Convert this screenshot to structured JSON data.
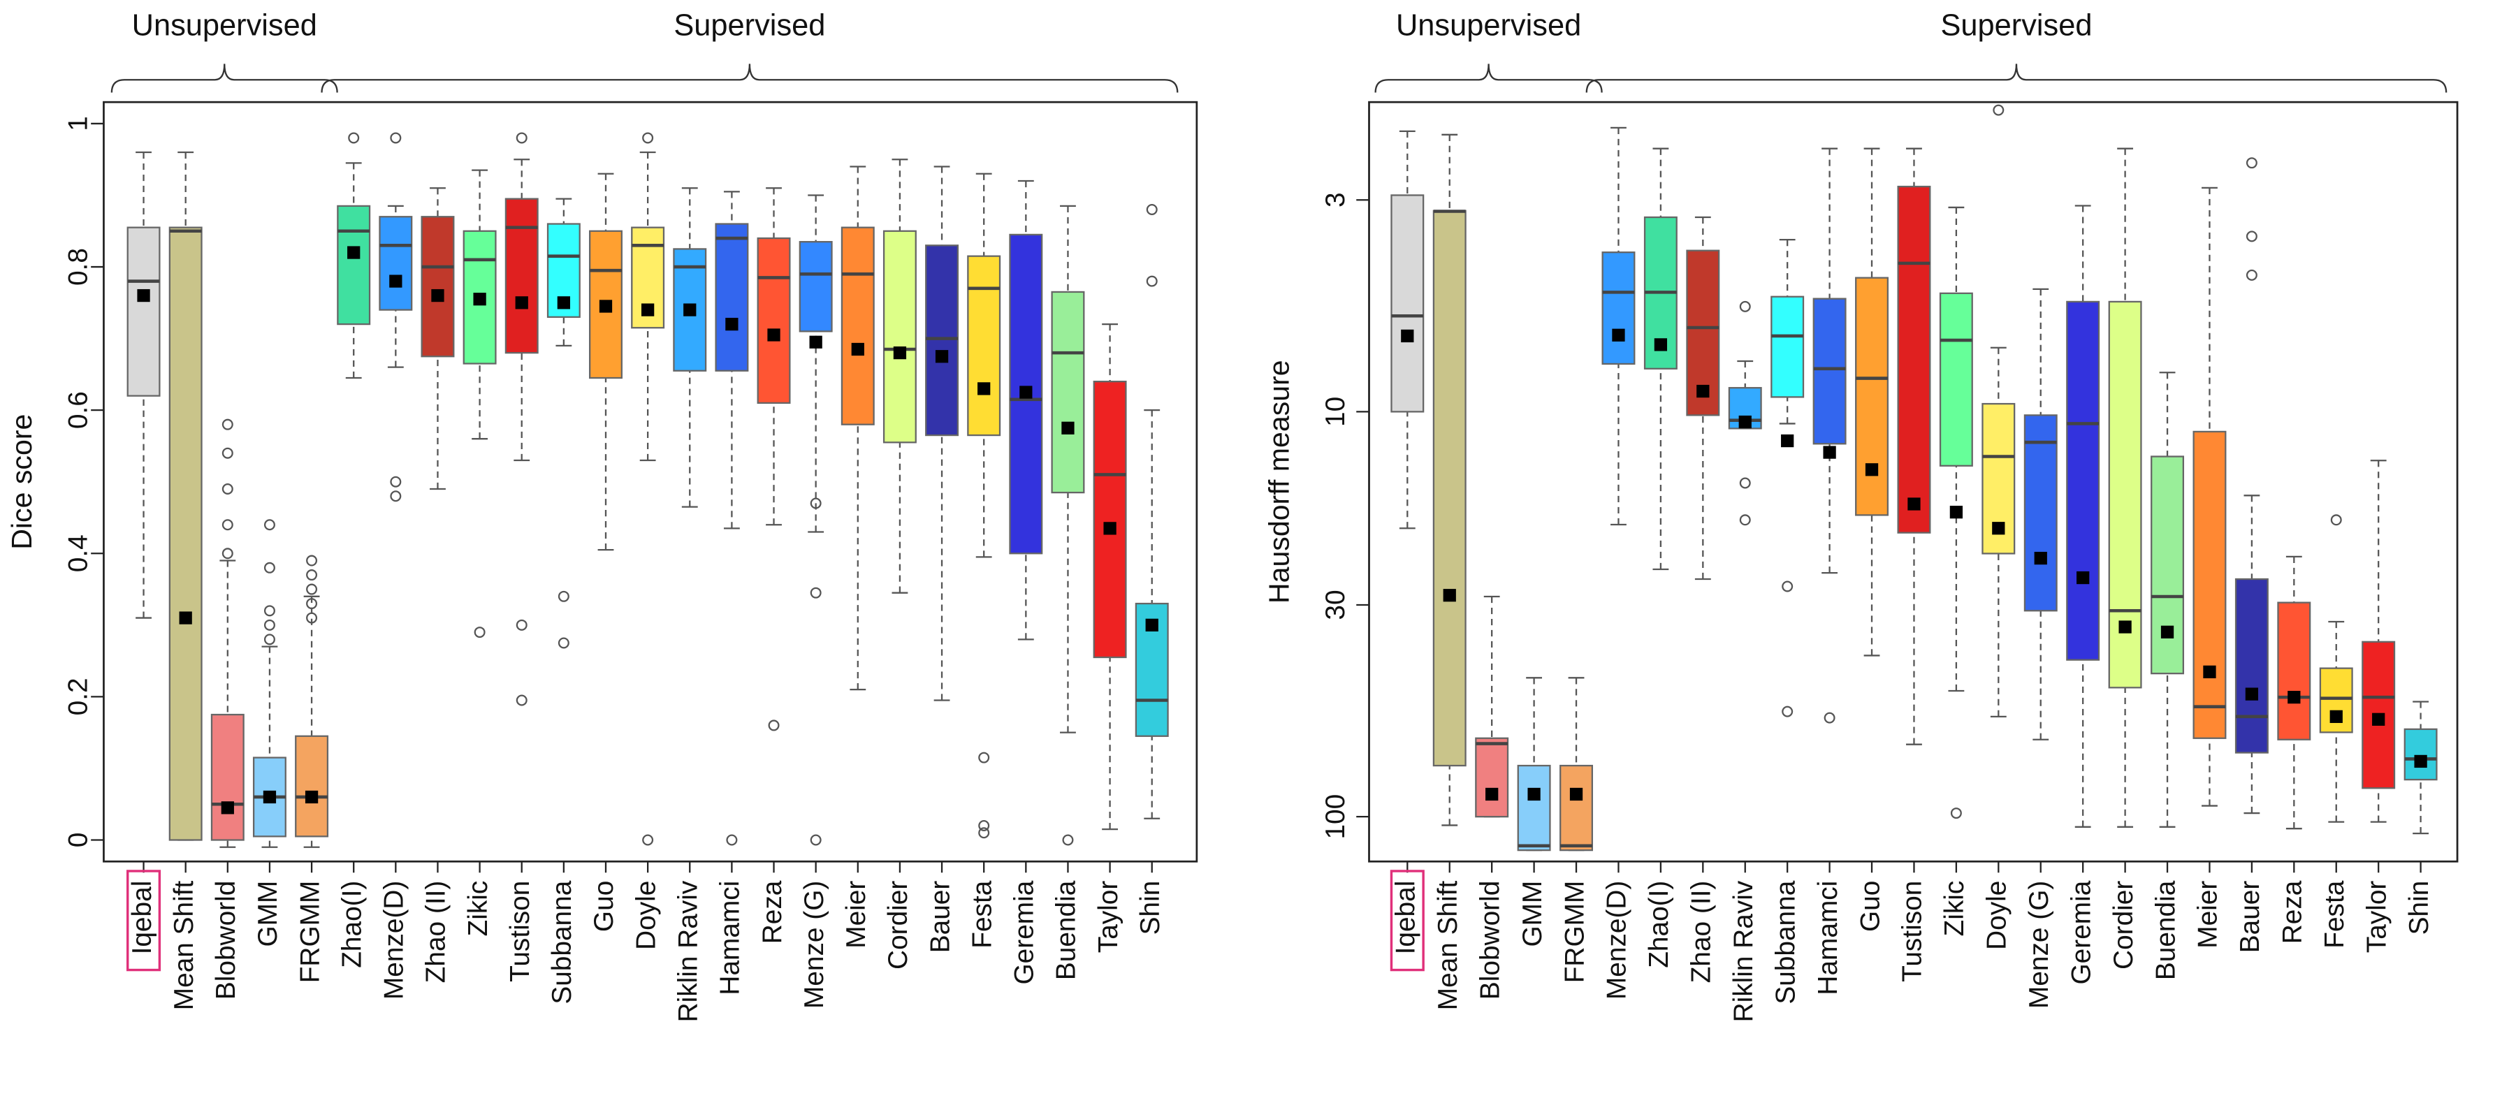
{
  "chart_data": [
    {
      "type": "box",
      "y_label": "Dice score",
      "annotations": [
        "Unsupervised",
        "Supervised"
      ],
      "categories": [
        "Iqebal",
        "Mean Shift",
        "Blobworld",
        "GMM",
        "FRGMM",
        "Zhao(I)",
        "Menze(D)",
        "Zhao (II)",
        "Zikic",
        "Tustison",
        "Subbanna",
        "Guo",
        "Doyle",
        "Riklin Raviv",
        "Hamamci",
        "Reza",
        "Menze (G)",
        "Meier",
        "Cordier",
        "Bauer",
        "Festa",
        "Geremia",
        "Buendia",
        "Taylor",
        "Shin"
      ],
      "min": [
        0.31,
        0,
        -0.01,
        -0.01,
        -0.01,
        0.645,
        0.66,
        0.49,
        0.56,
        0.53,
        0.69,
        0.405,
        0.53,
        0.465,
        0.435,
        0.44,
        0.43,
        0.21,
        0.345,
        0.195,
        0.395,
        0.28,
        0.15,
        0.015,
        0.03
      ],
      "q1": [
        0.62,
        0,
        0,
        0.005,
        0.005,
        0.72,
        0.74,
        0.675,
        0.665,
        0.68,
        0.73,
        0.645,
        0.715,
        0.655,
        0.655,
        0.61,
        0.71,
        0.58,
        0.555,
        0.565,
        0.565,
        0.4,
        0.485,
        0.255,
        0.145
      ],
      "median": [
        0.78,
        0.85,
        0.05,
        0.06,
        0.06,
        0.85,
        0.83,
        0.8,
        0.81,
        0.855,
        0.815,
        0.795,
        0.83,
        0.8,
        0.84,
        0.785,
        0.79,
        0.79,
        0.685,
        0.7,
        0.77,
        0.615,
        0.68,
        0.51,
        0.195
      ],
      "q3": [
        0.855,
        0.855,
        0.175,
        0.115,
        0.145,
        0.885,
        0.87,
        0.87,
        0.85,
        0.895,
        0.86,
        0.85,
        0.855,
        0.825,
        0.86,
        0.84,
        0.835,
        0.855,
        0.85,
        0.83,
        0.815,
        0.845,
        0.765,
        0.64,
        0.33
      ],
      "max": [
        0.96,
        0.96,
        0.39,
        0.27,
        0.34,
        0.945,
        0.885,
        0.91,
        0.935,
        0.95,
        0.895,
        0.93,
        0.96,
        0.91,
        0.905,
        0.91,
        0.9,
        0.94,
        0.95,
        0.94,
        0.93,
        0.92,
        0.885,
        0.72,
        0.6
      ],
      "mean": [
        0.76,
        0.31,
        0.045,
        0.06,
        0.06,
        0.82,
        0.78,
        0.76,
        0.755,
        0.75,
        0.75,
        0.745,
        0.74,
        0.74,
        0.72,
        0.705,
        0.695,
        0.685,
        0.68,
        0.675,
        0.63,
        0.625,
        0.575,
        0.435,
        0.3
      ],
      "outliers": [
        [],
        [],
        [
          0.4,
          0.44,
          0.49,
          0.54,
          0.58
        ],
        [
          0.28,
          0.3,
          0.32,
          0.38,
          0.44
        ],
        [
          0.31,
          0.33,
          0.35,
          0.37,
          0.39
        ],
        [
          0.98
        ],
        [
          0.48,
          0.5,
          0.98
        ],
        [],
        [
          0.29
        ],
        [
          0.195,
          0.3,
          0.98
        ],
        [
          0.275,
          0.34
        ],
        [],
        [
          0,
          0.98
        ],
        [],
        [
          0
        ],
        [
          0.16
        ],
        [
          0,
          0.345,
          0.47
        ],
        [],
        [],
        [],
        [
          0.01,
          0.02,
          0.115
        ],
        [],
        [
          0
        ],
        [],
        [
          0.78,
          0.88
        ]
      ],
      "colors": [
        "#d9d9d9",
        "#c9c48a",
        "#f08080",
        "#87cefa",
        "#f4a460",
        "#40e0a0",
        "#3399ff",
        "#c0392b",
        "#66ff99",
        "#e02020",
        "#33ffff",
        "#ffa030",
        "#ffee66",
        "#33aaff",
        "#3366ee",
        "#ff5533",
        "#3388ff",
        "#ff8833",
        "#ddff88",
        "#3333aa",
        "#ffdd33",
        "#3333dd",
        "#99ee99",
        "#ee2222",
        "#33ccdd"
      ],
      "ylim": [
        -0.03,
        1.03
      ],
      "yticks": [
        0,
        0.2,
        0.4,
        0.6,
        0.8,
        1
      ]
    },
    {
      "type": "box",
      "y_label": "Hausdorff measure",
      "annotations": [
        "Unsupervised",
        "Supervised"
      ],
      "log_scale": true,
      "categories": [
        "Iqebal",
        "Mean Shift",
        "Blobworld",
        "GMM",
        "FRGMM",
        "Menze(D)",
        "Zhao(I)",
        "Zhao (II)",
        "Riklin Raviv",
        "Subbanna",
        "Hamamci",
        "Guo",
        "Tustison",
        "Zikic",
        "Doyle",
        "Menze (G)",
        "Geremia",
        "Cordier",
        "Buendia",
        "Meier",
        "Bauer",
        "Reza",
        "Festa",
        "Taylor",
        "Shin"
      ],
      "min": [
        2.03,
        2.07,
        28.6,
        45.4,
        45.4,
        1.99,
        2.24,
        3.31,
        7.5,
        3.76,
        2.24,
        2.24,
        2.24,
        3.13,
        6.95,
        4.98,
        3.1,
        2.24,
        8.0,
        2.8,
        16.1,
        22.8,
        33,
        13.2,
        52
      ],
      "q1": [
        2.92,
        3.19,
        64,
        74.8,
        74.8,
        4.04,
        3.31,
        4.0,
        8.73,
        5.2,
        5.26,
        4.67,
        2.78,
        5.1,
        9.56,
        10.2,
        5.35,
        5.35,
        12.9,
        11.2,
        25.9,
        29.6,
        43,
        37,
        60.8
      ],
      "median": [
        5.8,
        3.2,
        66,
        118,
        118,
        5.07,
        5.07,
        6.2,
        10.5,
        6.5,
        7.83,
        8.27,
        4.3,
        6.66,
        12.9,
        11.9,
        10.7,
        31,
        28.6,
        53.5,
        56.6,
        50.7,
        51,
        50.7,
        72
      ],
      "q3": [
        10,
        74.8,
        100,
        121,
        121,
        7.62,
        7.83,
        10.2,
        11.0,
        9.2,
        12,
        18.0,
        19.9,
        13.6,
        22.4,
        31,
        41,
        48,
        44.3,
        64,
        69.5,
        64.5,
        61.9,
        85,
        81
      ],
      "max": [
        19.4,
        105,
        100,
        121,
        121,
        19.0,
        24.5,
        25.9,
        11.0,
        10.7,
        25,
        40,
        66.3,
        48.9,
        56.6,
        64.5,
        106,
        106,
        106,
        94,
        98,
        107,
        103,
        103,
        110
      ],
      "mean": [
        6.5,
        28.4,
        88,
        88,
        88,
        6.47,
        6.83,
        8.9,
        10.6,
        11.8,
        12.6,
        13.9,
        16.9,
        17.7,
        19.4,
        23,
        25.7,
        34,
        35,
        43.9,
        49.8,
        50.7,
        56.6,
        57.5,
        73
      ],
      "outliers": [
        [],
        [],
        [],
        [],
        [],
        [],
        [],
        [],
        [
          5.5,
          15,
          18.5
        ],
        [
          27,
          55
        ],
        [
          57
        ],
        [],
        [],
        [
          98
        ],
        [
          1.8
        ],
        [],
        [],
        [],
        [],
        [],
        [
          2.43,
          3.69,
          4.6
        ],
        [],
        [
          18.5
        ],
        [],
        []
      ],
      "colors": [
        "#d9d9d9",
        "#c9c48a",
        "#f08080",
        "#87cefa",
        "#f4a460",
        "#3399ff",
        "#40e0a0",
        "#c0392b",
        "#33aaff",
        "#33ffff",
        "#3366ee",
        "#ffa030",
        "#e02020",
        "#66ff99",
        "#ffee66",
        "#3366ee",
        "#3333dd",
        "#ddff88",
        "#99ee99",
        "#ff8833",
        "#3333aa",
        "#ff5533",
        "#ffdd33",
        "#ee2222",
        "#33ccdd"
      ],
      "ylim": [
        129,
        1.72
      ],
      "yticks": [
        3,
        10,
        30,
        100
      ]
    }
  ]
}
